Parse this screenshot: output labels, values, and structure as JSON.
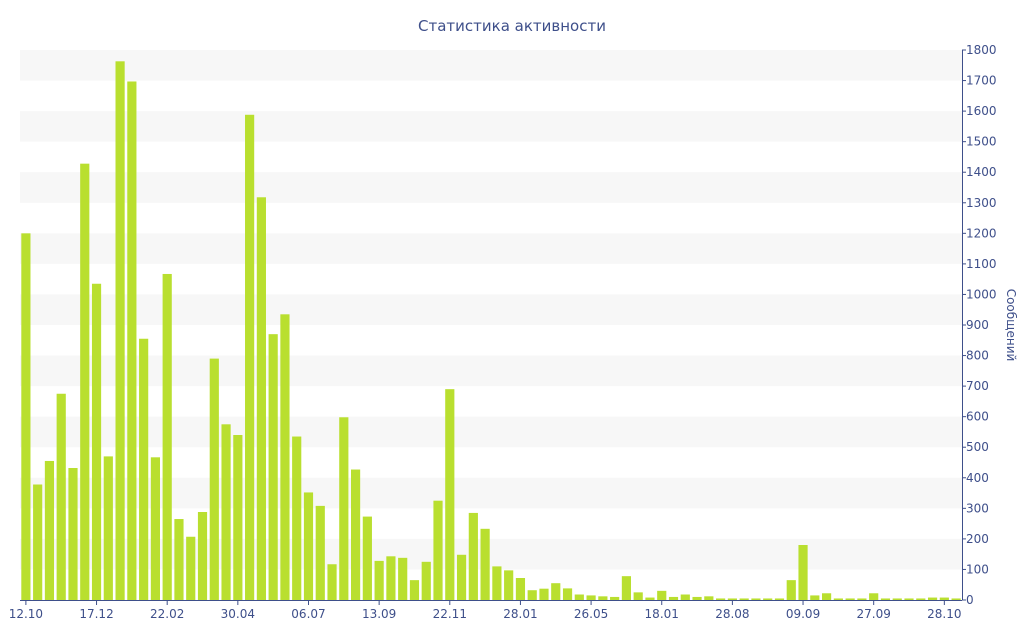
{
  "colors": {
    "bar": "#b9df2f",
    "band": "#f7f7f7",
    "axis_text": "#3e4f8a",
    "axis_line": "#3e4f8a"
  },
  "chart_data": {
    "type": "bar",
    "title": "Статистика активности",
    "ylabel": "Сообщений",
    "xlabel": "",
    "y_axis_position": "right",
    "ylim": [
      0,
      1800
    ],
    "y_ticks": [
      0,
      100,
      200,
      300,
      400,
      500,
      600,
      700,
      800,
      900,
      1000,
      1100,
      1200,
      1300,
      1400,
      1500,
      1600,
      1700,
      1800
    ],
    "grid": "alternating horizontal bands",
    "x_tick_labels": [
      {
        "label": "12.10",
        "index": 0
      },
      {
        "label": "17.12",
        "index": 6
      },
      {
        "label": "22.02",
        "index": 12
      },
      {
        "label": "30.04",
        "index": 18
      },
      {
        "label": "06.07",
        "index": 24
      },
      {
        "label": "13.09",
        "index": 30
      },
      {
        "label": "22.11",
        "index": 36
      },
      {
        "label": "28.01",
        "index": 42
      },
      {
        "label": "26.05",
        "index": 48
      },
      {
        "label": "18.01",
        "index": 54
      },
      {
        "label": "28.08",
        "index": 60
      },
      {
        "label": "09.09",
        "index": 66
      },
      {
        "label": "27.09",
        "index": 72
      },
      {
        "label": "28.10",
        "index": 78
      }
    ],
    "values": [
      1200,
      378,
      455,
      675,
      432,
      1428,
      1035,
      470,
      1763,
      1697,
      855,
      467,
      1067,
      265,
      207,
      288,
      790,
      575,
      540,
      1588,
      1318,
      870,
      935,
      535,
      352,
      308,
      117,
      598,
      427,
      273,
      128,
      143,
      138,
      65,
      125,
      325,
      690,
      148,
      285,
      233,
      110,
      97,
      72,
      32,
      37,
      55,
      38,
      18,
      15,
      12,
      10,
      78,
      25,
      8,
      30,
      10,
      18,
      10,
      12,
      5,
      5,
      5,
      5,
      5,
      5,
      65,
      180,
      15,
      22,
      5,
      5,
      5,
      22,
      5,
      5,
      5,
      5,
      8,
      8,
      5
    ]
  }
}
